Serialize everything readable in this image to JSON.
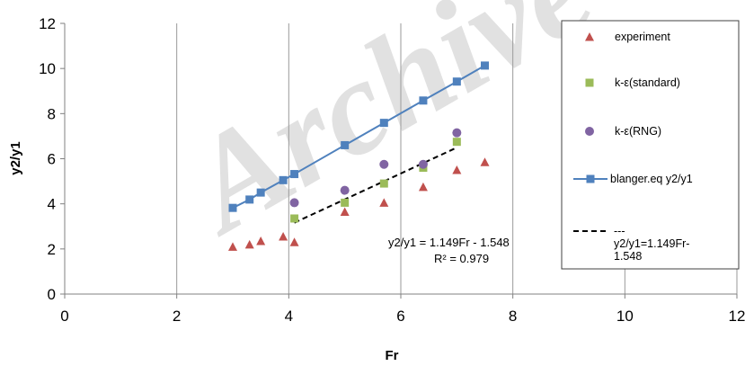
{
  "watermark": "Archive",
  "chart_data": {
    "type": "scatter",
    "title": "",
    "xlabel": "Fr",
    "ylabel": "y2/y1",
    "xlim": [
      0,
      12
    ],
    "ylim": [
      0,
      12
    ],
    "xticks": [
      "0",
      "2",
      "4",
      "6",
      "8",
      "10",
      "12"
    ],
    "yticks": [
      "0",
      "2",
      "4",
      "6",
      "8",
      "10",
      "12"
    ],
    "grid": "vertical",
    "legend_position": "right",
    "series": [
      {
        "name": "experiment",
        "marker": "triangle",
        "color": "#C0504D",
        "x": [
          3.0,
          3.3,
          3.5,
          3.9,
          4.1,
          5.0,
          5.7,
          6.4,
          7.0,
          7.5
        ],
        "y": [
          2.1,
          2.2,
          2.35,
          2.55,
          2.3,
          3.65,
          4.05,
          4.75,
          5.5,
          5.85
        ]
      },
      {
        "name": "k-ε(standard)",
        "marker": "square",
        "color": "#9BBB59",
        "x": [
          4.1,
          5.0,
          5.7,
          6.4,
          7.0
        ],
        "y": [
          3.35,
          4.05,
          4.9,
          5.6,
          6.75
        ]
      },
      {
        "name": "k-ε(RNG)",
        "marker": "circle",
        "color": "#8064A2",
        "x": [
          4.1,
          5.0,
          5.7,
          6.4,
          7.0
        ],
        "y": [
          4.05,
          4.6,
          5.75,
          5.75,
          7.15
        ]
      },
      {
        "name": "blanger.eq y2/y1",
        "marker": "square-line",
        "color": "#4F81BD",
        "x": [
          3.0,
          3.3,
          3.5,
          3.9,
          4.1,
          5.0,
          5.7,
          6.4,
          7.0,
          7.5
        ],
        "y": [
          3.82,
          4.19,
          4.5,
          5.05,
          5.32,
          6.6,
          7.59,
          8.58,
          9.42,
          10.13
        ]
      },
      {
        "name": "y2/y1=1.149Fr-1.548",
        "legend_lines": [
          "---",
          "y2/y1=1.149Fr-",
          "1.548"
        ],
        "marker": "dashed-line",
        "color": "#000000",
        "x": [
          4.1,
          7.0
        ],
        "y": [
          3.163,
          6.495
        ]
      }
    ],
    "annotations": {
      "equation": "y2/y1 = 1.149Fr - 1.548",
      "r_squared": "R² = 0.979"
    }
  }
}
